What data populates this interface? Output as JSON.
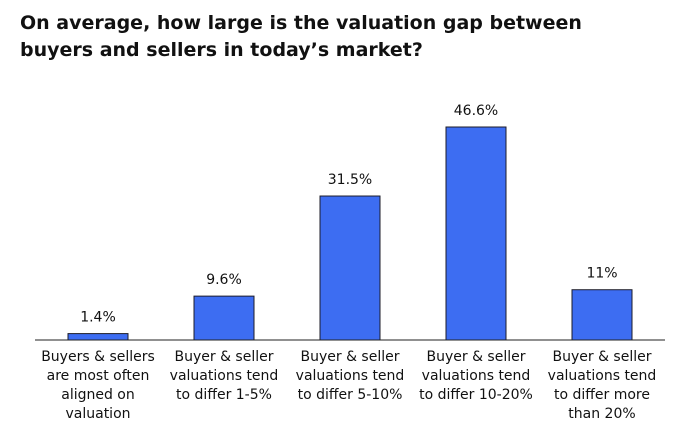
{
  "chart_data": {
    "type": "bar",
    "title": "On average, how large is the valuation gap between buyers and sellers in today’s market?",
    "categories": [
      "Buyers & sellers are most often aligned on valuation",
      "Buyer & seller valuations tend to differ 1-5%",
      "Buyer & seller valuations tend to differ 5-10%",
      "Buyer & seller valuations tend to differ 10-20%",
      "Buyer & seller valuations tend to differ more than 20%"
    ],
    "values": [
      1.4,
      9.6,
      31.5,
      46.6,
      11
    ],
    "value_labels": [
      "1.4%",
      "9.6%",
      "31.5%",
      "46.6%",
      "11%"
    ],
    "color": "#3d6df2"
  }
}
